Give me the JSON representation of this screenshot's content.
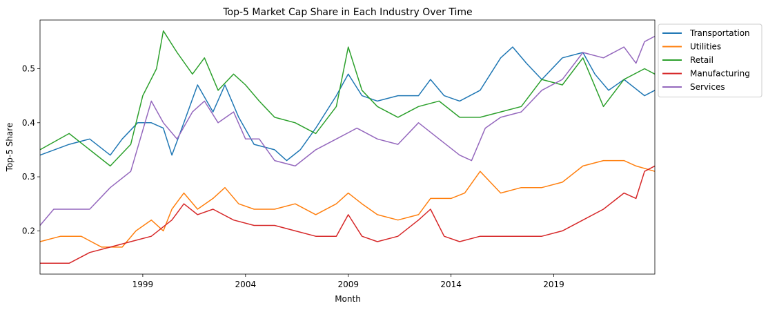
{
  "chart_data": {
    "type": "line",
    "title": "Top-5 Market Cap Share in Each Industry Over Time",
    "xlabel": "Month",
    "ylabel": "Top-5 Share",
    "x_type": "date",
    "xlim": [
      "1994-01",
      "2023-12"
    ],
    "ylim": [
      0.12,
      0.59
    ],
    "xticks": [
      {
        "label": "1999",
        "date": "1999-01"
      },
      {
        "label": "2004",
        "date": "2004-01"
      },
      {
        "label": "2009",
        "date": "2009-01"
      },
      {
        "label": "2014",
        "date": "2014-01"
      },
      {
        "label": "2019",
        "date": "2019-01"
      }
    ],
    "yticks": [
      0.2,
      0.3,
      0.4,
      0.5
    ],
    "grid": false,
    "legend": "outside-upper-right",
    "series": [
      {
        "name": "Transportation",
        "color": "#1f77b4",
        "points": [
          [
            "1994-01",
            0.34
          ],
          [
            "1995-06",
            0.36
          ],
          [
            "1996-06",
            0.37
          ],
          [
            "1997-06",
            0.34
          ],
          [
            "1998-01",
            0.37
          ],
          [
            "1998-10",
            0.4
          ],
          [
            "1999-06",
            0.4
          ],
          [
            "2000-01",
            0.39
          ],
          [
            "2000-06",
            0.34
          ],
          [
            "2001-01",
            0.4
          ],
          [
            "2001-09",
            0.47
          ],
          [
            "2002-06",
            0.42
          ],
          [
            "2003-01",
            0.47
          ],
          [
            "2003-09",
            0.41
          ],
          [
            "2004-06",
            0.36
          ],
          [
            "2005-06",
            0.35
          ],
          [
            "2006-01",
            0.33
          ],
          [
            "2006-09",
            0.35
          ],
          [
            "2007-06",
            0.39
          ],
          [
            "2008-06",
            0.45
          ],
          [
            "2009-01",
            0.49
          ],
          [
            "2009-09",
            0.45
          ],
          [
            "2010-06",
            0.44
          ],
          [
            "2011-06",
            0.45
          ],
          [
            "2012-06",
            0.45
          ],
          [
            "2013-01",
            0.48
          ],
          [
            "2013-09",
            0.45
          ],
          [
            "2014-06",
            0.44
          ],
          [
            "2015-06",
            0.46
          ],
          [
            "2016-06",
            0.52
          ],
          [
            "2017-01",
            0.54
          ],
          [
            "2017-09",
            0.51
          ],
          [
            "2018-06",
            0.48
          ],
          [
            "2019-06",
            0.52
          ],
          [
            "2020-06",
            0.53
          ],
          [
            "2021-01",
            0.49
          ],
          [
            "2021-09",
            0.46
          ],
          [
            "2022-06",
            0.48
          ],
          [
            "2023-06",
            0.45
          ],
          [
            "2023-12",
            0.46
          ]
        ]
      },
      {
        "name": "Utilities",
        "color": "#ff7f0e",
        "points": [
          [
            "1994-01",
            0.18
          ],
          [
            "1995-01",
            0.19
          ],
          [
            "1996-01",
            0.19
          ],
          [
            "1997-01",
            0.17
          ],
          [
            "1998-01",
            0.17
          ],
          [
            "1998-09",
            0.2
          ],
          [
            "1999-06",
            0.22
          ],
          [
            "2000-01",
            0.2
          ],
          [
            "2000-06",
            0.24
          ],
          [
            "2001-01",
            0.27
          ],
          [
            "2001-09",
            0.24
          ],
          [
            "2002-06",
            0.26
          ],
          [
            "2003-01",
            0.28
          ],
          [
            "2003-09",
            0.25
          ],
          [
            "2004-06",
            0.24
          ],
          [
            "2005-06",
            0.24
          ],
          [
            "2006-06",
            0.25
          ],
          [
            "2007-06",
            0.23
          ],
          [
            "2008-06",
            0.25
          ],
          [
            "2009-01",
            0.27
          ],
          [
            "2009-09",
            0.25
          ],
          [
            "2010-06",
            0.23
          ],
          [
            "2011-06",
            0.22
          ],
          [
            "2012-06",
            0.23
          ],
          [
            "2013-01",
            0.26
          ],
          [
            "2014-01",
            0.26
          ],
          [
            "2014-09",
            0.27
          ],
          [
            "2015-06",
            0.31
          ],
          [
            "2016-06",
            0.27
          ],
          [
            "2017-06",
            0.28
          ],
          [
            "2018-06",
            0.28
          ],
          [
            "2019-06",
            0.29
          ],
          [
            "2020-06",
            0.32
          ],
          [
            "2021-06",
            0.33
          ],
          [
            "2022-06",
            0.33
          ],
          [
            "2023-01",
            0.32
          ],
          [
            "2023-12",
            0.31
          ]
        ]
      },
      {
        "name": "Retail",
        "color": "#2ca02c",
        "points": [
          [
            "1994-01",
            0.35
          ],
          [
            "1995-06",
            0.38
          ],
          [
            "1996-06",
            0.35
          ],
          [
            "1997-06",
            0.32
          ],
          [
            "1998-06",
            0.36
          ],
          [
            "1999-01",
            0.45
          ],
          [
            "1999-09",
            0.5
          ],
          [
            "2000-01",
            0.57
          ],
          [
            "2000-09",
            0.53
          ],
          [
            "2001-06",
            0.49
          ],
          [
            "2002-01",
            0.52
          ],
          [
            "2002-09",
            0.46
          ],
          [
            "2003-06",
            0.49
          ],
          [
            "2004-01",
            0.47
          ],
          [
            "2004-09",
            0.44
          ],
          [
            "2005-06",
            0.41
          ],
          [
            "2006-06",
            0.4
          ],
          [
            "2007-06",
            0.38
          ],
          [
            "2008-06",
            0.43
          ],
          [
            "2009-01",
            0.54
          ],
          [
            "2009-09",
            0.46
          ],
          [
            "2010-06",
            0.43
          ],
          [
            "2011-06",
            0.41
          ],
          [
            "2012-06",
            0.43
          ],
          [
            "2013-06",
            0.44
          ],
          [
            "2014-06",
            0.41
          ],
          [
            "2015-06",
            0.41
          ],
          [
            "2016-06",
            0.42
          ],
          [
            "2017-06",
            0.43
          ],
          [
            "2018-06",
            0.48
          ],
          [
            "2019-06",
            0.47
          ],
          [
            "2020-06",
            0.52
          ],
          [
            "2021-06",
            0.43
          ],
          [
            "2022-06",
            0.48
          ],
          [
            "2023-06",
            0.5
          ],
          [
            "2023-12",
            0.49
          ]
        ]
      },
      {
        "name": "Manufacturing",
        "color": "#d62728",
        "points": [
          [
            "1994-01",
            0.14
          ],
          [
            "1995-06",
            0.14
          ],
          [
            "1996-06",
            0.16
          ],
          [
            "1997-06",
            0.17
          ],
          [
            "1998-06",
            0.18
          ],
          [
            "1999-06",
            0.19
          ],
          [
            "2000-06",
            0.22
          ],
          [
            "2001-01",
            0.25
          ],
          [
            "2001-09",
            0.23
          ],
          [
            "2002-06",
            0.24
          ],
          [
            "2003-06",
            0.22
          ],
          [
            "2004-06",
            0.21
          ],
          [
            "2005-06",
            0.21
          ],
          [
            "2006-06",
            0.2
          ],
          [
            "2007-06",
            0.19
          ],
          [
            "2008-06",
            0.19
          ],
          [
            "2009-01",
            0.23
          ],
          [
            "2009-09",
            0.19
          ],
          [
            "2010-06",
            0.18
          ],
          [
            "2011-06",
            0.19
          ],
          [
            "2012-06",
            0.22
          ],
          [
            "2013-01",
            0.24
          ],
          [
            "2013-09",
            0.19
          ],
          [
            "2014-06",
            0.18
          ],
          [
            "2015-06",
            0.19
          ],
          [
            "2016-06",
            0.19
          ],
          [
            "2017-06",
            0.19
          ],
          [
            "2018-06",
            0.19
          ],
          [
            "2019-06",
            0.2
          ],
          [
            "2020-06",
            0.22
          ],
          [
            "2021-06",
            0.24
          ],
          [
            "2022-06",
            0.27
          ],
          [
            "2023-01",
            0.26
          ],
          [
            "2023-06",
            0.31
          ],
          [
            "2023-12",
            0.32
          ]
        ]
      },
      {
        "name": "Services",
        "color": "#9467bd",
        "points": [
          [
            "1994-01",
            0.21
          ],
          [
            "1994-09",
            0.24
          ],
          [
            "1995-06",
            0.24
          ],
          [
            "1996-06",
            0.24
          ],
          [
            "1997-06",
            0.28
          ],
          [
            "1998-06",
            0.31
          ],
          [
            "1999-06",
            0.44
          ],
          [
            "2000-01",
            0.4
          ],
          [
            "2000-09",
            0.37
          ],
          [
            "2001-06",
            0.42
          ],
          [
            "2002-01",
            0.44
          ],
          [
            "2002-09",
            0.4
          ],
          [
            "2003-06",
            0.42
          ],
          [
            "2004-01",
            0.37
          ],
          [
            "2004-09",
            0.37
          ],
          [
            "2005-06",
            0.33
          ],
          [
            "2006-06",
            0.32
          ],
          [
            "2007-06",
            0.35
          ],
          [
            "2008-06",
            0.37
          ],
          [
            "2009-06",
            0.39
          ],
          [
            "2010-06",
            0.37
          ],
          [
            "2011-06",
            0.36
          ],
          [
            "2012-06",
            0.4
          ],
          [
            "2013-06",
            0.37
          ],
          [
            "2014-06",
            0.34
          ],
          [
            "2015-01",
            0.33
          ],
          [
            "2015-09",
            0.39
          ],
          [
            "2016-06",
            0.41
          ],
          [
            "2017-06",
            0.42
          ],
          [
            "2018-06",
            0.46
          ],
          [
            "2019-06",
            0.48
          ],
          [
            "2020-06",
            0.53
          ],
          [
            "2021-06",
            0.52
          ],
          [
            "2022-06",
            0.54
          ],
          [
            "2023-01",
            0.51
          ],
          [
            "2023-06",
            0.55
          ],
          [
            "2023-12",
            0.56
          ]
        ]
      }
    ]
  }
}
